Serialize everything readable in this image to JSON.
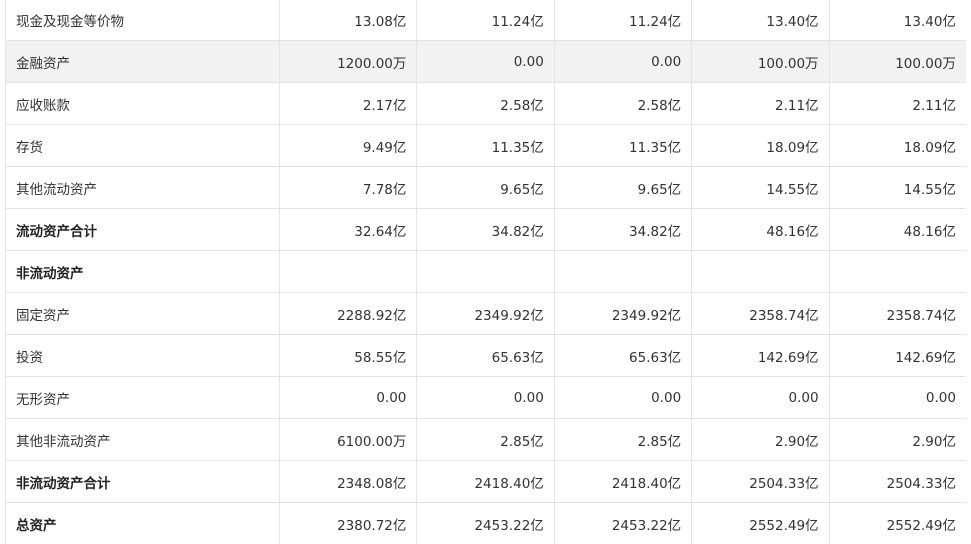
{
  "rows": [
    {
      "label": "现金及现金等价物",
      "bold": false,
      "highlight": false,
      "values": [
        "13.08亿",
        "11.24亿",
        "11.24亿",
        "13.40亿",
        "13.40亿"
      ]
    },
    {
      "label": "金融资产",
      "bold": false,
      "highlight": true,
      "values": [
        "1200.00万",
        "0.00",
        "0.00",
        "100.00万",
        "100.00万"
      ]
    },
    {
      "label": "应收账款",
      "bold": false,
      "highlight": false,
      "values": [
        "2.17亿",
        "2.58亿",
        "2.58亿",
        "2.11亿",
        "2.11亿"
      ]
    },
    {
      "label": "存货",
      "bold": false,
      "highlight": false,
      "values": [
        "9.49亿",
        "11.35亿",
        "11.35亿",
        "18.09亿",
        "18.09亿"
      ]
    },
    {
      "label": "其他流动资产",
      "bold": false,
      "highlight": false,
      "values": [
        "7.78亿",
        "9.65亿",
        "9.65亿",
        "14.55亿",
        "14.55亿"
      ]
    },
    {
      "label": "流动资产合计",
      "bold": true,
      "highlight": false,
      "values": [
        "32.64亿",
        "34.82亿",
        "34.82亿",
        "48.16亿",
        "48.16亿"
      ]
    },
    {
      "label": "非流动资产",
      "bold": true,
      "highlight": false,
      "values": [
        "",
        "",
        "",
        "",
        ""
      ]
    },
    {
      "label": "固定资产",
      "bold": false,
      "highlight": false,
      "values": [
        "2288.92亿",
        "2349.92亿",
        "2349.92亿",
        "2358.74亿",
        "2358.74亿"
      ]
    },
    {
      "label": "投资",
      "bold": false,
      "highlight": false,
      "values": [
        "58.55亿",
        "65.63亿",
        "65.63亿",
        "142.69亿",
        "142.69亿"
      ]
    },
    {
      "label": "无形资产",
      "bold": false,
      "highlight": false,
      "values": [
        "0.00",
        "0.00",
        "0.00",
        "0.00",
        "0.00"
      ]
    },
    {
      "label": "其他非流动资产",
      "bold": false,
      "highlight": false,
      "values": [
        "6100.00万",
        "2.85亿",
        "2.85亿",
        "2.90亿",
        "2.90亿"
      ]
    },
    {
      "label": "非流动资产合计",
      "bold": true,
      "highlight": false,
      "values": [
        "2348.08亿",
        "2418.40亿",
        "2418.40亿",
        "2504.33亿",
        "2504.33亿"
      ]
    },
    {
      "label": "总资产",
      "bold": true,
      "highlight": false,
      "values": [
        "2380.72亿",
        "2453.22亿",
        "2453.22亿",
        "2552.49亿",
        "2552.49亿"
      ]
    }
  ]
}
